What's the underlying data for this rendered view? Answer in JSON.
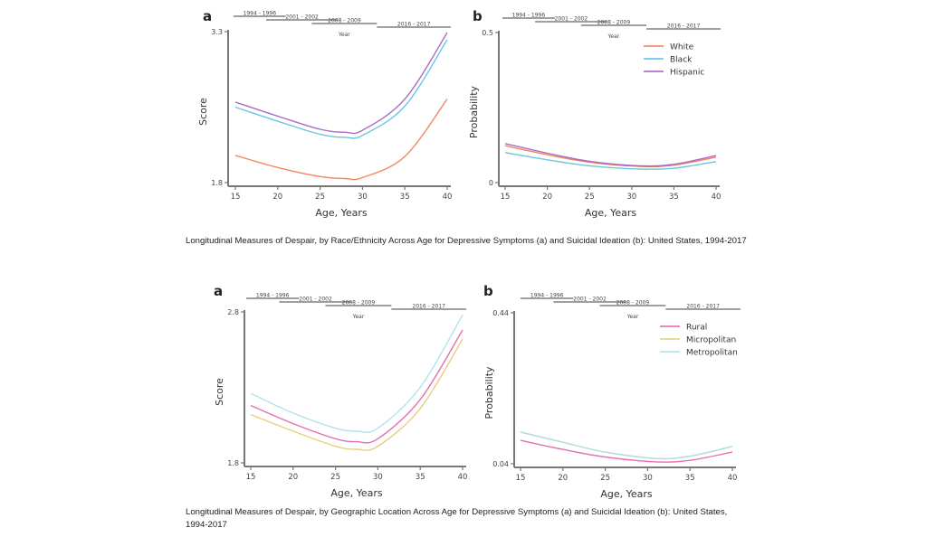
{
  "captions": {
    "top": "Longitudinal Measures of Despair, by Race/Ethnicity Across Age for Depressive Symptoms (a) and Suicidal Ideation (b): United States, 1994-2017",
    "bottom": "Longitudinal Measures of Despair, by Geographic Location Across Age for Depressive Symptoms (a) and Suicidal Ideation (b): United States, 1994-2017"
  },
  "year_bar": {
    "label": "Year",
    "periods": [
      "1994 - 1996",
      "2001 - 2002",
      "2008 - 2009",
      "2016 - 2017"
    ]
  },
  "chart_data": [
    {
      "id": "race-a",
      "panel_label": "a",
      "type": "line",
      "xlabel": "Age, Years",
      "ylabel": "Score",
      "xlim": [
        15,
        40
      ],
      "ylim": [
        1.8,
        3.3
      ],
      "xticks": [
        15,
        20,
        25,
        30,
        35,
        40
      ],
      "yticks": [
        1.8,
        3.3
      ],
      "legend": false,
      "x": [
        15,
        20,
        25,
        28,
        30,
        35,
        40
      ],
      "series": [
        {
          "name": "White",
          "color": "#f07850",
          "values": [
            2.07,
            1.95,
            1.86,
            1.84,
            1.85,
            2.06,
            2.63
          ]
        },
        {
          "name": "Black",
          "color": "#5bc0e0",
          "values": [
            2.55,
            2.41,
            2.28,
            2.25,
            2.27,
            2.56,
            3.22
          ]
        },
        {
          "name": "Hispanic",
          "color": "#a05cc0",
          "values": [
            2.6,
            2.46,
            2.33,
            2.3,
            2.32,
            2.63,
            3.29
          ]
        }
      ]
    },
    {
      "id": "race-b",
      "panel_label": "b",
      "type": "line",
      "xlabel": "Age, Years",
      "ylabel": "Probability",
      "xlim": [
        15,
        40
      ],
      "ylim": [
        0,
        0.5
      ],
      "xticks": [
        15,
        20,
        25,
        30,
        35,
        40
      ],
      "yticks": [
        0,
        0.5
      ],
      "legend": "top-right",
      "x": [
        15,
        20,
        25,
        31,
        35,
        40
      ],
      "series": [
        {
          "name": "White",
          "color": "#f07850",
          "values": [
            0.123,
            0.093,
            0.068,
            0.054,
            0.058,
            0.085
          ]
        },
        {
          "name": "Black",
          "color": "#5bc0e0",
          "values": [
            0.1,
            0.076,
            0.056,
            0.045,
            0.048,
            0.07
          ]
        },
        {
          "name": "Hispanic",
          "color": "#a05cc0",
          "values": [
            0.13,
            0.098,
            0.071,
            0.056,
            0.061,
            0.09
          ]
        }
      ]
    },
    {
      "id": "geo-a",
      "panel_label": "a",
      "type": "line",
      "xlabel": "Age, Years",
      "ylabel": "Score",
      "xlim": [
        15,
        40
      ],
      "ylim": [
        1.8,
        2.8
      ],
      "xticks": [
        15,
        20,
        25,
        30,
        35,
        40
      ],
      "yticks": [
        1.8,
        2.8
      ],
      "legend": false,
      "x": [
        15,
        20,
        25,
        27.5,
        30,
        35,
        40
      ],
      "series": [
        {
          "name": "Rural",
          "color": "#e060a8",
          "values": [
            2.18,
            2.06,
            1.96,
            1.94,
            1.96,
            2.22,
            2.68
          ]
        },
        {
          "name": "Micropolitan",
          "color": "#e8c870",
          "values": [
            2.12,
            2.01,
            1.91,
            1.89,
            1.91,
            2.16,
            2.62
          ]
        },
        {
          "name": "Metropolitan",
          "color": "#a8e0ec",
          "values": [
            2.26,
            2.13,
            2.03,
            2.01,
            2.03,
            2.3,
            2.78
          ]
        }
      ]
    },
    {
      "id": "geo-b",
      "panel_label": "b",
      "type": "line",
      "xlabel": "Age, Years",
      "ylabel": "Probability",
      "xlim": [
        15,
        40
      ],
      "ylim": [
        0.04,
        0.44
      ],
      "xticks": [
        15,
        20,
        25,
        30,
        35,
        40
      ],
      "yticks": [
        0.04,
        0.44
      ],
      "legend": "top-right",
      "x": [
        15,
        20,
        25,
        31,
        35,
        40
      ],
      "series": [
        {
          "name": "Rural",
          "color": "#e060a8",
          "values": [
            0.102,
            0.078,
            0.058,
            0.045,
            0.049,
            0.071
          ]
        },
        {
          "name": "Micropolitan",
          "color": "#e8c870",
          "values": [
            0.124,
            0.097,
            0.071,
            0.054,
            0.06,
            0.086
          ]
        },
        {
          "name": "Metropolitan",
          "color": "#a8e0ec",
          "values": [
            0.124,
            0.097,
            0.071,
            0.054,
            0.06,
            0.086
          ]
        }
      ]
    }
  ]
}
